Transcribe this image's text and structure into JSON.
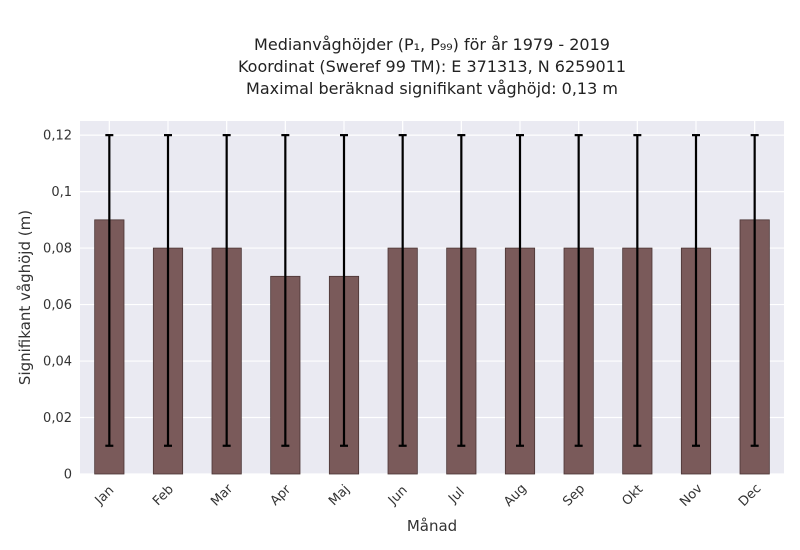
{
  "chart_data": {
    "type": "bar",
    "title_lines": [
      "Medianvåghöjder (P₁, P₉₉) för år 1979 - 2019",
      "Koordinat (Sweref 99 TM): E 371313, N 6259011",
      "Maximal beräknad signifikant våghöjd: 0,13 m"
    ],
    "xlabel": "Månad",
    "ylabel": "Signifikant våghöjd (m)",
    "categories": [
      "Jan",
      "Feb",
      "Mar",
      "Apr",
      "Maj",
      "Jun",
      "Jul",
      "Aug",
      "Sep",
      "Okt",
      "Nov",
      "Dec"
    ],
    "values": [
      0.09,
      0.08,
      0.08,
      0.07,
      0.07,
      0.08,
      0.08,
      0.08,
      0.08,
      0.08,
      0.08,
      0.09
    ],
    "error_low": [
      0.01,
      0.01,
      0.01,
      0.01,
      0.01,
      0.01,
      0.01,
      0.01,
      0.01,
      0.01,
      0.01,
      0.01
    ],
    "error_high": [
      0.12,
      0.12,
      0.12,
      0.12,
      0.12,
      0.12,
      0.12,
      0.12,
      0.12,
      0.12,
      0.12,
      0.12
    ],
    "ylim": [
      0,
      0.125
    ],
    "yticks": [
      0,
      0.02,
      0.04,
      0.06,
      0.08,
      0.1,
      0.12
    ],
    "ytick_labels": [
      "0",
      "0,02",
      "0,04",
      "0,06",
      "0,08",
      "0,1",
      "0,12"
    ],
    "grid": true,
    "colors": {
      "bar": "#7a5a5a",
      "bar_edge": "#4a3434",
      "error": "#000000",
      "plot_bg": "#eaeaf2",
      "grid": "#ffffff"
    }
  }
}
